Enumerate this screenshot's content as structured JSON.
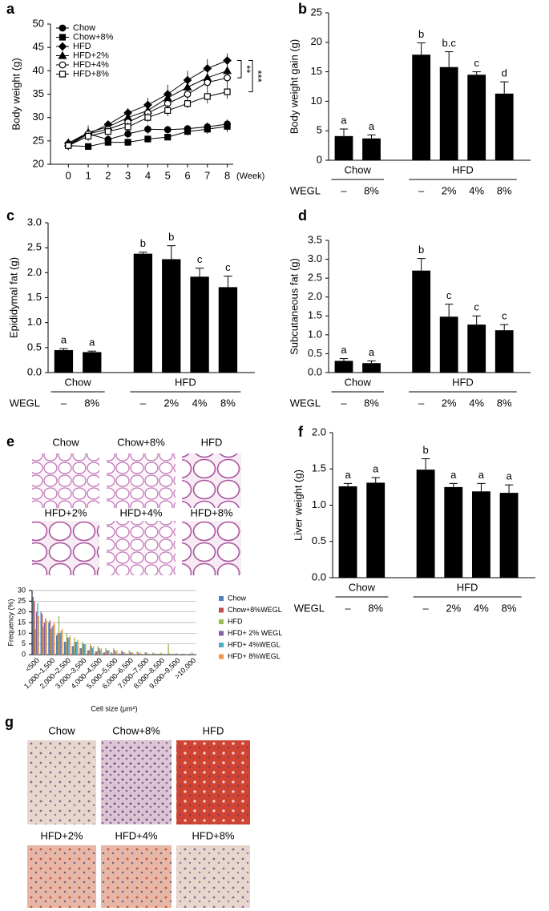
{
  "chart_data": [
    {
      "type": "line",
      "panel": "a",
      "ylabel": "Body weight (g)",
      "xlabel": "(Week)",
      "x": [
        0,
        1,
        2,
        3,
        4,
        5,
        6,
        7,
        8
      ],
      "xlim": [
        -0.9,
        8.3
      ],
      "xticks": [
        0,
        1,
        2,
        3,
        4,
        5,
        6,
        7,
        8
      ],
      "ylim": [
        20,
        50
      ],
      "yticks": [
        20,
        25,
        30,
        35,
        40,
        45,
        50
      ],
      "color": "#000000",
      "series": [
        {
          "name": "Chow",
          "marker": "circle",
          "filled": true,
          "values": [
            24.2,
            26.5,
            25.3,
            26.5,
            27.5,
            27.4,
            27.6,
            28,
            28.6
          ],
          "errors": [
            1,
            1,
            0.7,
            0.8,
            1,
            0.8,
            0.8,
            1,
            1
          ]
        },
        {
          "name": "Chow+8%",
          "marker": "square",
          "filled": true,
          "values": [
            24,
            23.8,
            24.7,
            24.7,
            25.4,
            25.8,
            27,
            27.5,
            28.1
          ],
          "errors": [
            0.8,
            0.5,
            0.8,
            0.8,
            0.8,
            0.6,
            0.8,
            1,
            1.2
          ]
        },
        {
          "name": "HFD",
          "marker": "diamond",
          "filled": true,
          "values": [
            24.5,
            26.5,
            28.5,
            31,
            32.7,
            35,
            38,
            40.5,
            42.2
          ],
          "errors": [
            1,
            1.5,
            0.8,
            1,
            1.5,
            2,
            2,
            2,
            1.5
          ]
        },
        {
          "name": "HFD+2%",
          "marker": "triangle",
          "filled": true,
          "values": [
            24.5,
            26.8,
            28,
            30,
            31.5,
            34.2,
            36.5,
            38.5,
            40
          ],
          "errors": [
            1,
            1.5,
            1,
            1,
            1.3,
            1.5,
            1.5,
            1.5,
            1.3
          ]
        },
        {
          "name": "HFD+4%",
          "marker": "circle",
          "filled": false,
          "values": [
            24,
            26.5,
            27.5,
            29,
            31,
            33,
            35,
            37.5,
            38.5
          ],
          "errors": [
            1,
            1.2,
            1,
            1,
            1,
            1.2,
            1.2,
            1.5,
            1.5
          ]
        },
        {
          "name": "HFD+8%",
          "marker": "square",
          "filled": false,
          "values": [
            24,
            26,
            27,
            28,
            30,
            31.5,
            33,
            34.5,
            35.5
          ],
          "errors": [
            1,
            1,
            1,
            1,
            1,
            1.2,
            1,
            1.5,
            1.5
          ]
        }
      ],
      "annotations": [
        "**",
        "***"
      ]
    },
    {
      "type": "bar",
      "panel": "b",
      "ylabel": "Body weight gain (g)",
      "category_label": "WEGL",
      "color": "#000000",
      "groups": [
        {
          "name": "Chow",
          "categories": [
            "–",
            "8%"
          ]
        },
        {
          "name": "HFD",
          "categories": [
            "–",
            "2%",
            "4%",
            "8%"
          ]
        }
      ],
      "values": [
        4.1,
        3.7,
        17.9,
        15.8,
        14.5,
        11.3
      ],
      "errors": [
        1.2,
        0.6,
        2.0,
        2.6,
        0.5,
        2.0
      ],
      "annotations": [
        "a",
        "a",
        "b",
        "b.c",
        "c",
        "d"
      ],
      "ylim": [
        0,
        25
      ],
      "yticks": [
        0,
        5,
        10,
        15,
        20,
        25
      ]
    },
    {
      "type": "bar",
      "panel": "c",
      "ylabel": "Epididymal fat (g)",
      "category_label": "WEGL",
      "color": "#000000",
      "groups": [
        {
          "name": "Chow",
          "categories": [
            "–",
            "8%"
          ]
        },
        {
          "name": "HFD",
          "categories": [
            "–",
            "2%",
            "4%",
            "8%"
          ]
        }
      ],
      "values": [
        0.45,
        0.41,
        2.38,
        2.27,
        1.92,
        1.71
      ],
      "errors": [
        0.03,
        0.02,
        0.03,
        0.27,
        0.17,
        0.22
      ],
      "annotations": [
        "a",
        "a",
        "b",
        "b",
        "c",
        "c"
      ],
      "ylim": [
        0,
        3
      ],
      "yticks": [
        {
          "value": 0,
          "label": "0.0"
        },
        0.5,
        {
          "value": 1,
          "label": "1.0"
        },
        1.5,
        {
          "value": 2,
          "label": "2.0"
        },
        2.5,
        {
          "value": 3,
          "label": "3.0"
        }
      ]
    },
    {
      "type": "bar",
      "panel": "d",
      "ylabel": "Subcutaneous fat (g)",
      "category_label": "WEGL",
      "color": "#000000",
      "groups": [
        {
          "name": "Chow",
          "categories": [
            "–",
            "8%"
          ]
        },
        {
          "name": "HFD",
          "categories": [
            "–",
            "2%",
            "4%",
            "8%"
          ]
        }
      ],
      "values": [
        0.31,
        0.25,
        2.7,
        1.48,
        1.27,
        1.12
      ],
      "errors": [
        0.06,
        0.06,
        0.32,
        0.33,
        0.23,
        0.15
      ],
      "annotations": [
        "a",
        "a",
        "b",
        "c",
        "c",
        "c"
      ],
      "ylim": [
        0,
        3.5
      ],
      "yticks": [
        {
          "value": 0,
          "label": "0.0"
        },
        0.5,
        {
          "value": 1,
          "label": "1.0"
        },
        1.5,
        {
          "value": 2,
          "label": "2.0"
        },
        2.5,
        {
          "value": 3,
          "label": "3.0"
        },
        3.5
      ]
    },
    {
      "type": "bar",
      "ylabel": "Frequency (%)",
      "xlabel": "Cell size (μm²)",
      "grid": true,
      "categories": [
        "<500",
        null,
        "1,000–1,500",
        null,
        "2,000–2,500",
        null,
        "3,000–3,500",
        null,
        "4,000–4,500",
        null,
        "5,000–5,500",
        null,
        "6,000–6,500",
        null,
        "7,000–7,500",
        null,
        "8,000–8,500",
        null,
        "9,000–9,500",
        null,
        ">10,000"
      ],
      "ylim": [
        0,
        30
      ],
      "yticks": [
        0,
        5,
        10,
        15,
        20,
        25,
        30
      ],
      "series": [
        {
          "name": "Chow",
          "color": "#4f81bd",
          "values": [
            27,
            20,
            15,
            9,
            6,
            4,
            3,
            2,
            1.5,
            1,
            1,
            0.5,
            0.5,
            0.3,
            0.2,
            0.2,
            0.1,
            0.1,
            0,
            0,
            0
          ]
        },
        {
          "name": "Chow+8%WEGL",
          "color": "#c0504d",
          "values": [
            25,
            19,
            16,
            10,
            6,
            4,
            3,
            2,
            1.5,
            1,
            0.5,
            0.5,
            0.3,
            0.2,
            0.1,
            0.1,
            0,
            0,
            0,
            0,
            0
          ]
        },
        {
          "name": "HFD",
          "color": "#9bbb59",
          "values": [
            12,
            13,
            12,
            18,
            10,
            8,
            6,
            5,
            4,
            3,
            3,
            2,
            2,
            1.5,
            1,
            1,
            1,
            5,
            0.5,
            0.5,
            1
          ]
        },
        {
          "name": "HFD+ 2% WEGL",
          "color": "#8064a2",
          "values": [
            20,
            15,
            13,
            10,
            8,
            6,
            5,
            4,
            3,
            2,
            2,
            1.5,
            1,
            1,
            1,
            0.5,
            0.5,
            0.5,
            0.5,
            0.3,
            0.5
          ]
        },
        {
          "name": "HFD+ 4%WEGL",
          "color": "#4bacc6",
          "values": [
            24,
            17,
            14,
            11,
            8,
            6,
            5,
            3,
            2,
            2,
            1,
            1,
            1,
            0.5,
            0.5,
            0.5,
            0.3,
            0.3,
            0.2,
            0.2,
            0.2
          ]
        },
        {
          "name": "HFD+ 8%WEGL",
          "color": "#f79646",
          "values": [
            18,
            16,
            15,
            12,
            9,
            7,
            5,
            4,
            3,
            2,
            2,
            1,
            1,
            1,
            0.5,
            0.5,
            0.5,
            0.5,
            0.3,
            0.3,
            0.5
          ]
        }
      ]
    },
    {
      "type": "bar",
      "panel": "f",
      "ylabel": "Liver weight (g)",
      "category_label": "WEGL",
      "color": "#000000",
      "groups": [
        {
          "name": "Chow",
          "categories": [
            "–",
            "8%"
          ]
        },
        {
          "name": "HFD",
          "categories": [
            "–",
            "2%",
            "4%",
            "8%"
          ]
        }
      ],
      "values": [
        1.26,
        1.31,
        1.49,
        1.25,
        1.19,
        1.17
      ],
      "errors": [
        0.04,
        0.07,
        0.15,
        0.05,
        0.11,
        0.11
      ],
      "annotations": [
        "a",
        "a",
        "b",
        "a",
        "a",
        "a"
      ],
      "ylim": [
        0,
        2
      ],
      "yticks": [
        {
          "value": 0,
          "label": "0.0"
        },
        0.5,
        {
          "value": 1,
          "label": "1.0"
        },
        1.5,
        {
          "value": 2,
          "label": "2.0"
        }
      ]
    }
  ],
  "images_e": {
    "panel": "e",
    "labels": [
      "Chow",
      "Chow+8%",
      "HFD",
      "HFD+2%",
      "HFD+4%",
      "HFD+8%"
    ]
  },
  "images_g": {
    "panel": "g",
    "labels": [
      "Chow",
      "Chow+8%",
      "HFD",
      "HFD+2%",
      "HFD+4%",
      "HFD+8%"
    ]
  }
}
